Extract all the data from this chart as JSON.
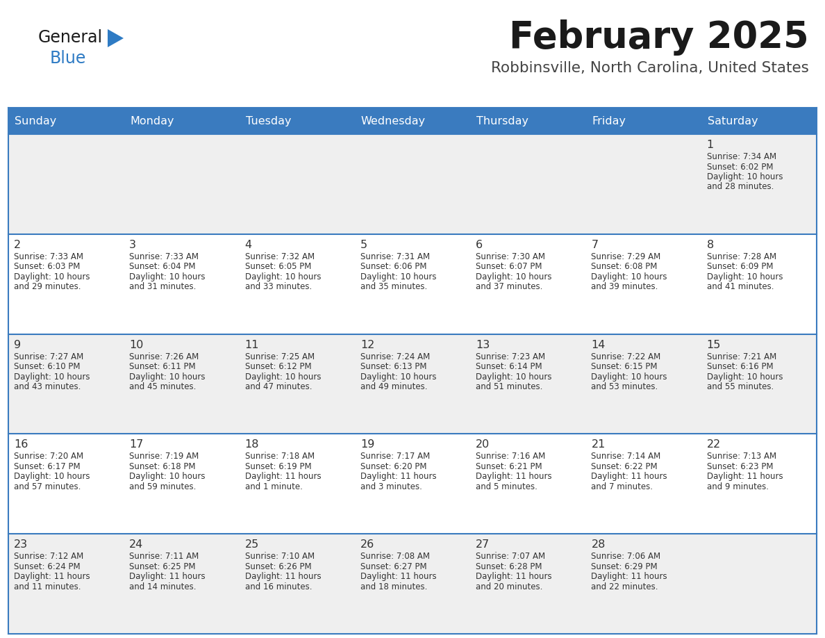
{
  "title": "February 2025",
  "subtitle": "Robbinsville, North Carolina, United States",
  "days_of_week": [
    "Sunday",
    "Monday",
    "Tuesday",
    "Wednesday",
    "Thursday",
    "Friday",
    "Saturday"
  ],
  "header_bg": "#3a7bbf",
  "header_text": "#ffffff",
  "cell_bg_light": "#efefef",
  "cell_bg_white": "#ffffff",
  "divider_color": "#3a7bbf",
  "text_color": "#333333",
  "title_color": "#1a1a1a",
  "subtitle_color": "#444444",
  "logo_general_color": "#1a1a1a",
  "logo_blue_color": "#2e7bc4",
  "calendar_data": [
    [
      null,
      null,
      null,
      null,
      null,
      null,
      {
        "day": 1,
        "sunrise": "7:34 AM",
        "sunset": "6:02 PM",
        "daylight_line1": "Daylight: 10 hours",
        "daylight_line2": "and 28 minutes."
      }
    ],
    [
      {
        "day": 2,
        "sunrise": "7:33 AM",
        "sunset": "6:03 PM",
        "daylight_line1": "Daylight: 10 hours",
        "daylight_line2": "and 29 minutes."
      },
      {
        "day": 3,
        "sunrise": "7:33 AM",
        "sunset": "6:04 PM",
        "daylight_line1": "Daylight: 10 hours",
        "daylight_line2": "and 31 minutes."
      },
      {
        "day": 4,
        "sunrise": "7:32 AM",
        "sunset": "6:05 PM",
        "daylight_line1": "Daylight: 10 hours",
        "daylight_line2": "and 33 minutes."
      },
      {
        "day": 5,
        "sunrise": "7:31 AM",
        "sunset": "6:06 PM",
        "daylight_line1": "Daylight: 10 hours",
        "daylight_line2": "and 35 minutes."
      },
      {
        "day": 6,
        "sunrise": "7:30 AM",
        "sunset": "6:07 PM",
        "daylight_line1": "Daylight: 10 hours",
        "daylight_line2": "and 37 minutes."
      },
      {
        "day": 7,
        "sunrise": "7:29 AM",
        "sunset": "6:08 PM",
        "daylight_line1": "Daylight: 10 hours",
        "daylight_line2": "and 39 minutes."
      },
      {
        "day": 8,
        "sunrise": "7:28 AM",
        "sunset": "6:09 PM",
        "daylight_line1": "Daylight: 10 hours",
        "daylight_line2": "and 41 minutes."
      }
    ],
    [
      {
        "day": 9,
        "sunrise": "7:27 AM",
        "sunset": "6:10 PM",
        "daylight_line1": "Daylight: 10 hours",
        "daylight_line2": "and 43 minutes."
      },
      {
        "day": 10,
        "sunrise": "7:26 AM",
        "sunset": "6:11 PM",
        "daylight_line1": "Daylight: 10 hours",
        "daylight_line2": "and 45 minutes."
      },
      {
        "day": 11,
        "sunrise": "7:25 AM",
        "sunset": "6:12 PM",
        "daylight_line1": "Daylight: 10 hours",
        "daylight_line2": "and 47 minutes."
      },
      {
        "day": 12,
        "sunrise": "7:24 AM",
        "sunset": "6:13 PM",
        "daylight_line1": "Daylight: 10 hours",
        "daylight_line2": "and 49 minutes."
      },
      {
        "day": 13,
        "sunrise": "7:23 AM",
        "sunset": "6:14 PM",
        "daylight_line1": "Daylight: 10 hours",
        "daylight_line2": "and 51 minutes."
      },
      {
        "day": 14,
        "sunrise": "7:22 AM",
        "sunset": "6:15 PM",
        "daylight_line1": "Daylight: 10 hours",
        "daylight_line2": "and 53 minutes."
      },
      {
        "day": 15,
        "sunrise": "7:21 AM",
        "sunset": "6:16 PM",
        "daylight_line1": "Daylight: 10 hours",
        "daylight_line2": "and 55 minutes."
      }
    ],
    [
      {
        "day": 16,
        "sunrise": "7:20 AM",
        "sunset": "6:17 PM",
        "daylight_line1": "Daylight: 10 hours",
        "daylight_line2": "and 57 minutes."
      },
      {
        "day": 17,
        "sunrise": "7:19 AM",
        "sunset": "6:18 PM",
        "daylight_line1": "Daylight: 10 hours",
        "daylight_line2": "and 59 minutes."
      },
      {
        "day": 18,
        "sunrise": "7:18 AM",
        "sunset": "6:19 PM",
        "daylight_line1": "Daylight: 11 hours",
        "daylight_line2": "and 1 minute."
      },
      {
        "day": 19,
        "sunrise": "7:17 AM",
        "sunset": "6:20 PM",
        "daylight_line1": "Daylight: 11 hours",
        "daylight_line2": "and 3 minutes."
      },
      {
        "day": 20,
        "sunrise": "7:16 AM",
        "sunset": "6:21 PM",
        "daylight_line1": "Daylight: 11 hours",
        "daylight_line2": "and 5 minutes."
      },
      {
        "day": 21,
        "sunrise": "7:14 AM",
        "sunset": "6:22 PM",
        "daylight_line1": "Daylight: 11 hours",
        "daylight_line2": "and 7 minutes."
      },
      {
        "day": 22,
        "sunrise": "7:13 AM",
        "sunset": "6:23 PM",
        "daylight_line1": "Daylight: 11 hours",
        "daylight_line2": "and 9 minutes."
      }
    ],
    [
      {
        "day": 23,
        "sunrise": "7:12 AM",
        "sunset": "6:24 PM",
        "daylight_line1": "Daylight: 11 hours",
        "daylight_line2": "and 11 minutes."
      },
      {
        "day": 24,
        "sunrise": "7:11 AM",
        "sunset": "6:25 PM",
        "daylight_line1": "Daylight: 11 hours",
        "daylight_line2": "and 14 minutes."
      },
      {
        "day": 25,
        "sunrise": "7:10 AM",
        "sunset": "6:26 PM",
        "daylight_line1": "Daylight: 11 hours",
        "daylight_line2": "and 16 minutes."
      },
      {
        "day": 26,
        "sunrise": "7:08 AM",
        "sunset": "6:27 PM",
        "daylight_line1": "Daylight: 11 hours",
        "daylight_line2": "and 18 minutes."
      },
      {
        "day": 27,
        "sunrise": "7:07 AM",
        "sunset": "6:28 PM",
        "daylight_line1": "Daylight: 11 hours",
        "daylight_line2": "and 20 minutes."
      },
      {
        "day": 28,
        "sunrise": "7:06 AM",
        "sunset": "6:29 PM",
        "daylight_line1": "Daylight: 11 hours",
        "daylight_line2": "and 22 minutes."
      },
      null
    ]
  ]
}
